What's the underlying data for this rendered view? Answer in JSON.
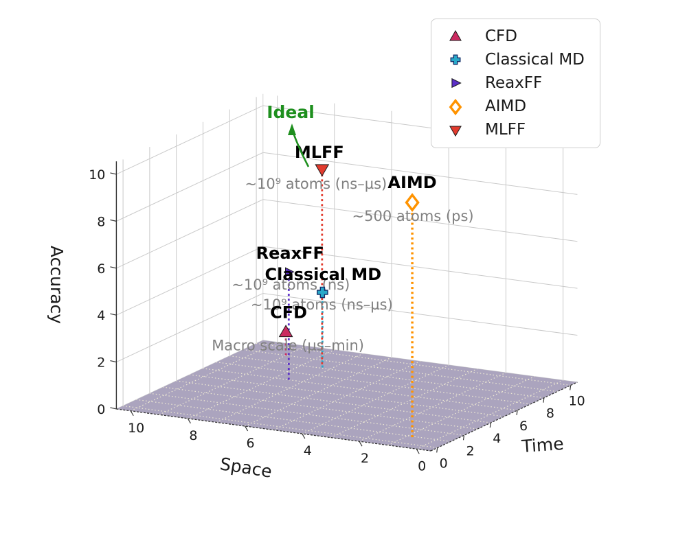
{
  "chart_data": {
    "type": "scatter",
    "projection": "3d",
    "title": "",
    "axes": {
      "x": {
        "label": "Space",
        "ticks": [
          "0",
          "2",
          "4",
          "6",
          "8",
          "10"
        ],
        "range": [
          0,
          10
        ]
      },
      "y": {
        "label": "Time",
        "ticks": [
          "0",
          "2",
          "4",
          "6",
          "8",
          "10"
        ],
        "range": [
          0,
          10
        ]
      },
      "z": {
        "label": "Accuracy",
        "ticks": [
          "0",
          "2",
          "4",
          "6",
          "8",
          "10"
        ],
        "range": [
          0,
          10
        ]
      }
    },
    "series": [
      {
        "name": "CFD",
        "marker": "triangle-up",
        "color": "#cb2a60",
        "edge": "#1a1a1a",
        "space": 9,
        "time": 9,
        "accuracy": 1,
        "annotation": "Macro scale (µs–min)"
      },
      {
        "name": "Classical MD",
        "marker": "plus",
        "color": "#29a8c8",
        "edge": "#15306b",
        "space": 7.3,
        "time": 8.1,
        "accuracy": 3.2,
        "annotation": "~10⁹ atoms (ns–µs)"
      },
      {
        "name": "ReaxFF",
        "marker": "triangle-right",
        "color": "#5b2fc7",
        "edge": "#1a1a1a",
        "space": 7.5,
        "time": 6,
        "accuracy": 4.6,
        "annotation": "~10⁹ atoms (ns)"
      },
      {
        "name": "AIMD",
        "marker": "diamond-open",
        "color": "#ff9300",
        "edge": "#ff9300",
        "space": 0.8,
        "time": 0.9,
        "accuracy": 10,
        "annotation": "~500 atoms (ps)"
      },
      {
        "name": "MLFF",
        "marker": "triangle-down",
        "color": "#e23b2e",
        "edge": "#1a1a1a",
        "space": 7.5,
        "time": 8.5,
        "accuracy": 8.3,
        "annotation": "~10⁹ atoms (ns–µs)"
      }
    ],
    "ideal": {
      "text": "Ideal",
      "color": "#1e8f1e"
    },
    "legend": {
      "position": "upper right",
      "entries": [
        "CFD",
        "Classical MD",
        "ReaxFF",
        "AIMD",
        "MLFF"
      ]
    },
    "style": {
      "background": "#ffffff",
      "floor_color": "#aba4be",
      "floor_grid_color": "#ece7d3",
      "wall_grid_color": "#c9c9c9",
      "spine_color": "#333333",
      "annotation_color": "#808080",
      "series_label_color": "#000000",
      "tick_color": "#1a1a1a"
    }
  }
}
